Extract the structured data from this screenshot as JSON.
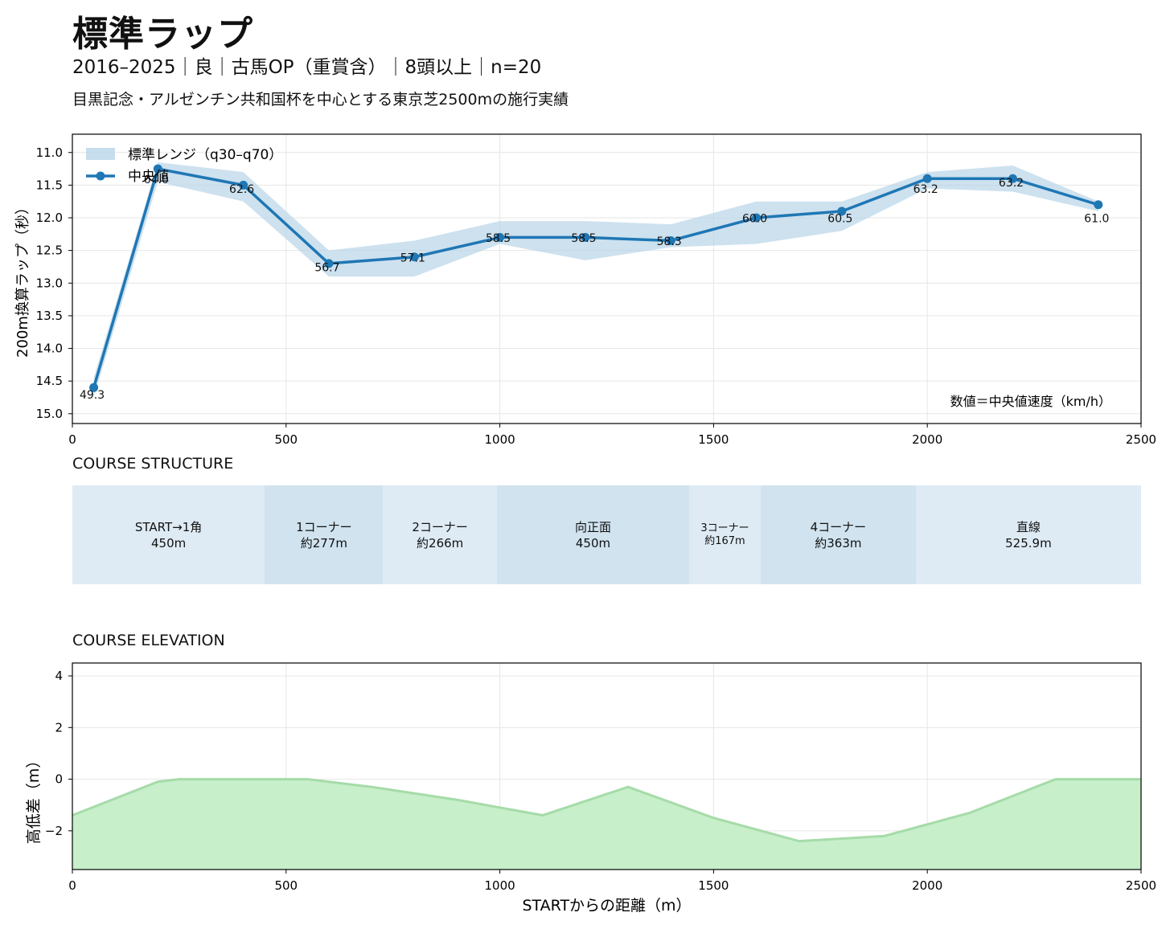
{
  "header": {
    "title": "標準ラップ",
    "subtitle": "2016–2025｜良｜古馬OP（重賞含）｜8頭以上｜n=20",
    "description": "目黒記念・アルゼンチン共和国杯を中心とする東京芝2500mの施行実績"
  },
  "chart_data": [
    {
      "type": "line",
      "ylabel": "200m換算ラップ（秒）",
      "xlabel": "",
      "xlim": [
        0,
        2500
      ],
      "ylim": [
        15.15,
        10.72
      ],
      "y_inverted": true,
      "xticks": [
        "0",
        "500",
        "1000",
        "1500",
        "2000",
        "2500"
      ],
      "yticks": [
        "11.0",
        "11.5",
        "12.0",
        "12.5",
        "13.0",
        "13.5",
        "14.0",
        "14.5",
        "15.0"
      ],
      "grid": true,
      "legend": {
        "placement": "top-left",
        "entries": [
          "標準レンジ（q30–q70）",
          "中央値"
        ]
      },
      "annotation": "数値＝中央値速度（km/h）",
      "x": [
        50,
        200,
        400,
        600,
        800,
        1000,
        1200,
        1400,
        1600,
        1800,
        2000,
        2200,
        2400
      ],
      "series": [
        {
          "name": "中央値",
          "values": [
            14.6,
            11.25,
            11.5,
            12.7,
            12.6,
            12.3,
            12.3,
            12.35,
            12.0,
            11.9,
            11.4,
            11.4,
            11.8
          ],
          "color": "#1f77b4"
        },
        {
          "name": "標準レンジ（q30–q70）",
          "lower": [
            14.45,
            11.15,
            11.3,
            12.5,
            12.35,
            12.05,
            12.05,
            12.1,
            11.75,
            11.75,
            11.3,
            11.2,
            11.75
          ],
          "upper": [
            14.75,
            11.45,
            11.75,
            12.9,
            12.9,
            12.4,
            12.65,
            12.45,
            12.4,
            12.2,
            11.55,
            11.6,
            11.9
          ],
          "color": "#b8d4e8"
        }
      ],
      "point_labels": [
        "49.3",
        "64.0",
        "62.6",
        "56.7",
        "57.1",
        "58.5",
        "58.5",
        "58.3",
        "60.0",
        "60.5",
        "63.2",
        "63.2",
        "61.0"
      ]
    },
    {
      "type": "area",
      "xlabel": "STARTからの距離（m）",
      "ylabel": "高低差（m）",
      "xlim": [
        0,
        2500
      ],
      "ylim": [
        -3.5,
        4.5
      ],
      "xticks": [
        "0",
        "500",
        "1000",
        "1500",
        "2000",
        "2500"
      ],
      "yticks": [
        "4",
        "2",
        "0",
        "−2"
      ],
      "grid": true,
      "x": [
        0,
        200,
        250,
        550,
        700,
        900,
        1100,
        1300,
        1500,
        1700,
        1900,
        2100,
        2300,
        2500
      ],
      "values": [
        -1.4,
        -0.1,
        0.0,
        0.0,
        -0.3,
        -0.8,
        -1.4,
        -0.3,
        -1.5,
        -2.4,
        -2.2,
        -1.3,
        0.0,
        0.0
      ],
      "color": "#c6efca"
    }
  ],
  "course_structure": {
    "label": "COURSE STRUCTURE",
    "segments": [
      {
        "name": "START→1角",
        "length": "450m",
        "start": 0,
        "end": 450,
        "color": "#deebf5"
      },
      {
        "name": "1コーナー",
        "length": "約277m",
        "start": 450,
        "end": 727,
        "color": "#d0e3ef"
      },
      {
        "name": "2コーナー",
        "length": "約266m",
        "start": 727,
        "end": 993,
        "color": "#deebf5"
      },
      {
        "name": "向正面",
        "length": "450m",
        "start": 993,
        "end": 1443,
        "color": "#d0e3ef"
      },
      {
        "name": "3コーナー",
        "length": "約167m",
        "start": 1443,
        "end": 1610,
        "color": "#deebf5"
      },
      {
        "name": "4コーナー",
        "length": "約363m",
        "start": 1610,
        "end": 1973,
        "color": "#d0e3ef"
      },
      {
        "name": "直線",
        "length": "525.9m",
        "start": 1973,
        "end": 2500,
        "color": "#deebf5"
      }
    ]
  },
  "course_elevation": {
    "label": "COURSE ELEVATION"
  }
}
